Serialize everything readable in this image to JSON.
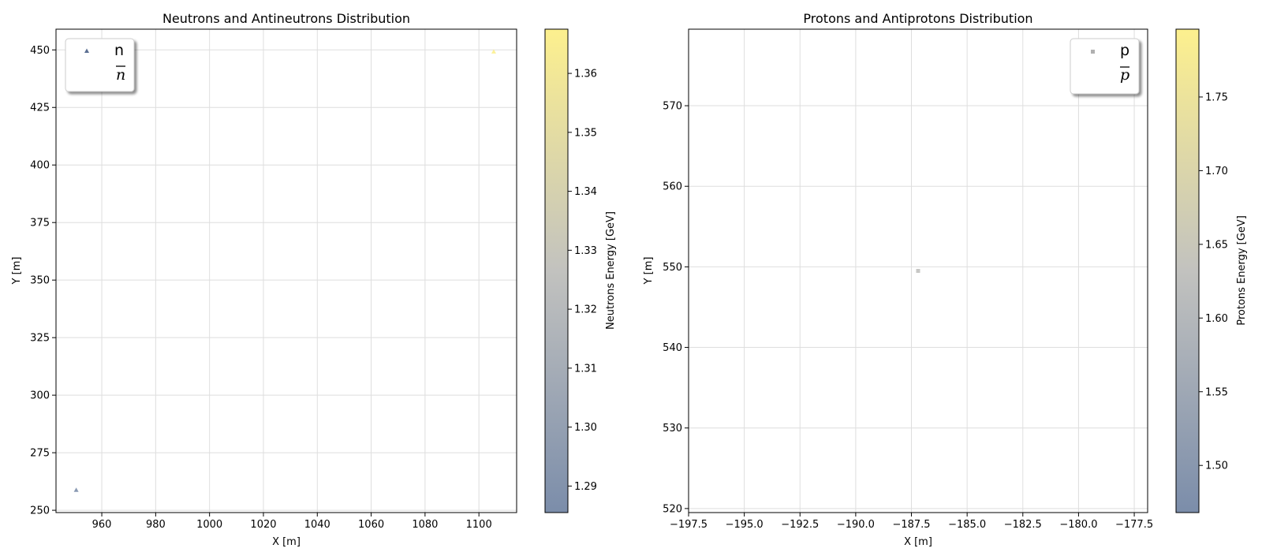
{
  "chart_data": [
    {
      "type": "scatter",
      "title": "Neutrons and Antineutrons Distribution",
      "xlabel": "X [m]",
      "ylabel": "Y [m]",
      "xlim": [
        943,
        1114
      ],
      "ylim": [
        249,
        459
      ],
      "xticks": [
        960,
        980,
        1000,
        1020,
        1040,
        1060,
        1080,
        1100
      ],
      "yticks": [
        250,
        275,
        300,
        325,
        350,
        375,
        400,
        425,
        450
      ],
      "grid": true,
      "legend_position": "upper left",
      "series": [
        {
          "name": "n",
          "marker": "triangle",
          "points": [
            {
              "x": 950.5,
              "y": 258.8,
              "energy": 1.286
            },
            {
              "x": 1105.5,
              "y": 449.2,
              "energy": 1.367
            }
          ]
        },
        {
          "name": "n̄",
          "marker": "circle",
          "points": []
        }
      ],
      "colorbar": {
        "label": "Neutrons Energy [GeV]",
        "min": 1.2855,
        "max": 1.3675,
        "ticks": [
          1.29,
          1.3,
          1.31,
          1.32,
          1.33,
          1.34,
          1.35,
          1.36
        ],
        "tick_labels": [
          "1.29",
          "1.30",
          "1.31",
          "1.32",
          "1.33",
          "1.34",
          "1.35",
          "1.36"
        ],
        "colormap": "cividis"
      }
    },
    {
      "type": "scatter",
      "title": "Protons and Antiprotons Distribution",
      "xlabel": "X [m]",
      "ylabel": "Y [m]",
      "xlim": [
        -197.5,
        -176.9
      ],
      "ylim": [
        519.5,
        579.5
      ],
      "xticks": [
        -197.5,
        -195.0,
        -192.5,
        -190.0,
        -187.5,
        -185.0,
        -182.5,
        -180.0,
        -177.5
      ],
      "xtick_labels": [
        "−197.5",
        "−195.0",
        "−192.5",
        "−190.0",
        "−187.5",
        "−185.0",
        "−182.5",
        "−180.0",
        "−177.5"
      ],
      "yticks": [
        520,
        530,
        540,
        550,
        560,
        570
      ],
      "grid": true,
      "legend_position": "upper right",
      "series": [
        {
          "name": "p",
          "marker": "square",
          "points": [
            {
              "x": -187.2,
              "y": 549.5,
              "energy": 1.63
            }
          ]
        },
        {
          "name": "p̄",
          "marker": "circle",
          "points": []
        }
      ],
      "colorbar": {
        "label": "Protons Energy [GeV]",
        "min": 1.468,
        "max": 1.796,
        "ticks": [
          1.5,
          1.55,
          1.6,
          1.65,
          1.7,
          1.75
        ],
        "tick_labels": [
          "1.50",
          "1.55",
          "1.60",
          "1.65",
          "1.70",
          "1.75"
        ],
        "colormap": "cividis"
      }
    }
  ],
  "colors": {
    "cmap_low": "#7b8daa",
    "cmap_mid": "#c2c2bf",
    "cmap_high": "#fdf08e",
    "grid": "#dedede"
  }
}
